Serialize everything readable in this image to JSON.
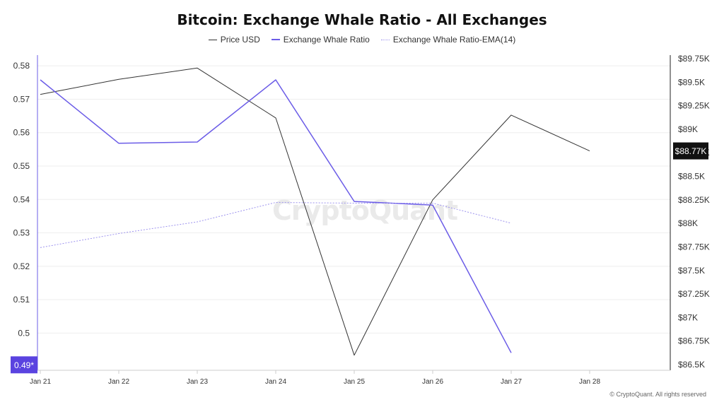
{
  "chart_data": {
    "type": "line",
    "title": "Bitcoin: Exchange Whale Ratio - All Exchanges",
    "categories": [
      "Jan 21",
      "Jan 22",
      "Jan 23",
      "Jan 24",
      "Jan 25",
      "Jan 26",
      "Jan 27",
      "Jan 28"
    ],
    "series": [
      {
        "name": "Price USD",
        "axis": "right",
        "color": "#333333",
        "values": [
          89370,
          89530,
          89650,
          89120,
          86600,
          88250,
          89150,
          88770
        ]
      },
      {
        "name": "Exchange Whale Ratio",
        "axis": "left",
        "color": "#6b5ce7",
        "values": [
          0.5758,
          0.5568,
          0.5572,
          0.5758,
          0.5394,
          0.5383,
          0.4941,
          null
        ]
      },
      {
        "name": "Exchange Whale Ratio-EMA(14)",
        "axis": "left",
        "color": "#9d93ee",
        "style": "dotted",
        "values": [
          0.5256,
          0.5298,
          0.5333,
          0.5391,
          0.5389,
          0.5389,
          0.5329,
          null
        ]
      }
    ],
    "y_left": {
      "ticks": [
        "0.58",
        "0.57",
        "0.56",
        "0.55",
        "0.54",
        "0.53",
        "0.52",
        "0.51",
        "0.5"
      ],
      "tick_values": [
        0.58,
        0.57,
        0.56,
        0.55,
        0.54,
        0.53,
        0.52,
        0.51,
        0.5
      ],
      "range": [
        0.4893,
        0.5813
      ],
      "current_label": "0.49*",
      "current_value": 0.4905
    },
    "y_right": {
      "ticks": [
        "$89.75K",
        "$89.5K",
        "$89.25K",
        "$89K",
        "$88.75K",
        "$88.5K",
        "$88.25K",
        "$88K",
        "$87.75K",
        "$87.5K",
        "$87.25K",
        "$87K",
        "$86.75K",
        "$86.5K"
      ],
      "tick_values": [
        89750,
        89500,
        89250,
        89000,
        88750,
        88500,
        88250,
        88000,
        87750,
        87500,
        87250,
        87000,
        86750,
        86500
      ],
      "range": [
        86500,
        89750
      ],
      "current_label": "$88.77K",
      "current_value": 88770
    },
    "grid": "horizontal",
    "legend_position": "top-center"
  },
  "watermark": "CryptoQuant",
  "copyright": "© CryptoQuant. All rights reserved"
}
